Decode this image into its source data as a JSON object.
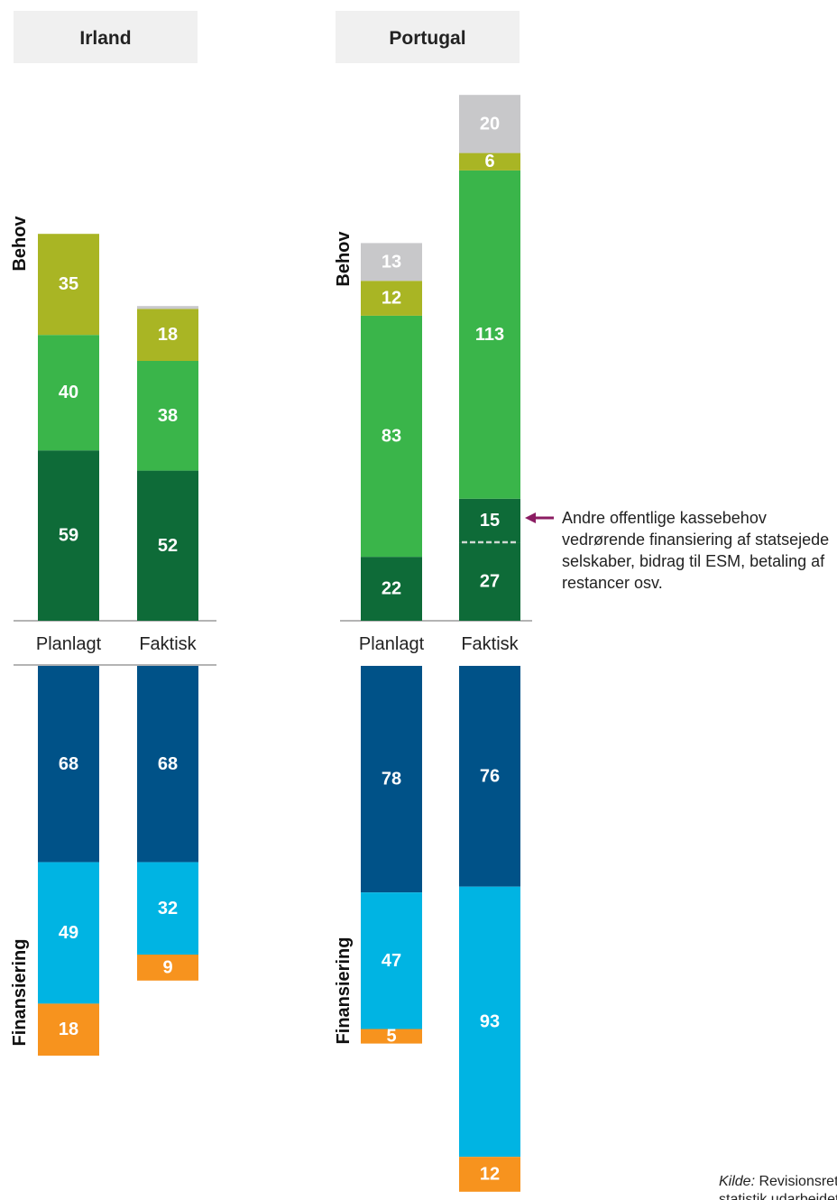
{
  "colors": {
    "other": "#c8c8ca",
    "olive": "#a9b524",
    "green": "#3ab54a",
    "darkgreen": "#0e6b38",
    "navy": "#005288",
    "cyan": "#00b4e3",
    "orange": "#f7931e",
    "panel_bg": "#f0f0f0",
    "arrow": "#8b1c62"
  },
  "labels": {
    "needs": "Behov",
    "financing": "Finansiering",
    "source_prefix": "Kilde:",
    "source_rest": " Revisionsretten",
    "source_line2": "statistik udarbejdet"
  },
  "annotation": {
    "lines": [
      "Andre offentlige kassebehov",
      "vedrørende finansiering af statsejede",
      "selskaber, bidrag til ESM, betaling af",
      "restancer osv."
    ]
  },
  "chart_data": [
    {
      "type": "bar",
      "title": "Irland",
      "categories": [
        "Planlagt",
        "Faktisk"
      ],
      "behov": [
        {
          "values": [
            59,
            52
          ],
          "color": "darkgreen"
        },
        {
          "values": [
            40,
            38
          ],
          "color": "green"
        },
        {
          "values": [
            35,
            18
          ],
          "color": "olive"
        },
        {
          "values": [
            0,
            1
          ],
          "color": "other"
        }
      ],
      "finansiering": [
        {
          "values": [
            68,
            68
          ],
          "color": "navy"
        },
        {
          "values": [
            49,
            32
          ],
          "color": "cyan"
        },
        {
          "values": [
            18,
            9
          ],
          "color": "orange"
        }
      ]
    },
    {
      "type": "bar",
      "title": "Portugal",
      "categories": [
        "Planlagt",
        "Faktisk"
      ],
      "behov": [
        {
          "values": [
            22,
            27
          ],
          "color": "darkgreen"
        },
        {
          "values": [
            0,
            15
          ],
          "color": "darkgreen"
        },
        {
          "values": [
            83,
            113
          ],
          "color": "green"
        },
        {
          "values": [
            12,
            6
          ],
          "color": "olive"
        },
        {
          "values": [
            13,
            20
          ],
          "color": "other"
        }
      ],
      "finansiering": [
        {
          "values": [
            78,
            76
          ],
          "color": "navy"
        },
        {
          "values": [
            47,
            93
          ],
          "color": "cyan"
        },
        {
          "values": [
            5,
            12
          ],
          "color": "orange"
        }
      ]
    }
  ]
}
